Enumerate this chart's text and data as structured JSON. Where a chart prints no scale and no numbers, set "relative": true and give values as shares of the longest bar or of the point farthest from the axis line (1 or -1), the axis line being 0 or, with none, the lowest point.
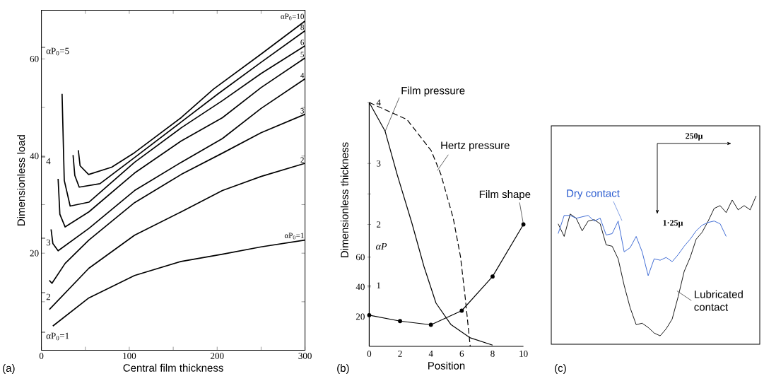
{
  "chart_data": [
    {
      "type": "line",
      "xlabel": "Central film thickness",
      "ylabel": "Dimensionless load",
      "xlim": [
        0,
        300
      ],
      "ylim": [
        0,
        70
      ],
      "xticks": [
        0,
        {
          "value": 50,
          "label": null
        },
        100,
        {
          "value": 150,
          "label": null
        },
        200,
        {
          "value": 250,
          "label": null
        },
        300
      ],
      "yticks": [
        {
          "value": 10,
          "label": null
        },
        20,
        {
          "value": 30,
          "label": null
        },
        40,
        {
          "value": 50,
          "label": null
        },
        60
      ],
      "annotations": [
        "αP$_{0}$=5",
        "4",
        "3",
        "2",
        "αP$_{0}$=1",
        "(a)"
      ],
      "series": [
        {
          "name": "αP$_{0}$=1",
          "color": "#000000",
          "x": [
            13,
            54,
            106,
            159,
            206,
            250,
            300
          ],
          "values": [
            5.0,
            10.8,
            15.4,
            18.3,
            19.8,
            21.3,
            22.7
          ]
        },
        {
          "name": "2",
          "color": "#000000",
          "x": [
            9,
            54,
            106,
            159,
            206,
            250,
            300
          ],
          "values": [
            8.4,
            16.9,
            23.7,
            28.5,
            32.9,
            35.8,
            38.5
          ]
        },
        {
          "name": "3",
          "color": "#000000",
          "x": [
            9,
            12,
            27,
            54,
            106,
            159,
            206,
            250,
            300
          ],
          "values": [
            14.4,
            13.8,
            17.9,
            22.7,
            30.4,
            36.2,
            40.6,
            44.8,
            48.6
          ]
        },
        {
          "name": "4",
          "color": "#000000",
          "x": [
            11,
            13,
            19,
            54,
            106,
            159,
            206,
            250,
            300
          ],
          "values": [
            24.9,
            22,
            20.5,
            25.1,
            32.9,
            38.7,
            43.6,
            49.8,
            55.9
          ]
        },
        {
          "name": "5",
          "color": "#000000",
          "x": [
            19,
            21,
            27,
            54,
            106,
            159,
            206,
            250,
            300
          ],
          "values": [
            35.3,
            28,
            25.4,
            28.5,
            36.5,
            43.1,
            47.9,
            54.1,
            60.2
          ]
        },
        {
          "name": "6",
          "color": "#000000",
          "x": [
            23.5,
            26,
            32.7,
            54,
            106,
            159,
            206,
            250,
            300
          ],
          "values": [
            52.8,
            35,
            29.7,
            30.5,
            38.7,
            45.8,
            51.4,
            57,
            62.7
          ]
        },
        {
          "name": "8",
          "color": "#000000",
          "x": [
            36,
            38,
            43,
            66.6,
            106,
            159,
            201,
            250,
            300
          ],
          "values": [
            40.2,
            36,
            33.6,
            34.3,
            39.7,
            47.0,
            52.8,
            59.3,
            65.8
          ]
        },
        {
          "name": "αP$_{0}$=10",
          "color": "#000000",
          "x": [
            42,
            44,
            53.7,
            80,
            106,
            159,
            196,
            250,
            300
          ],
          "values": [
            41.2,
            38,
            36.2,
            37.7,
            40.7,
            47.9,
            53.8,
            61,
            67.8
          ]
        }
      ]
    },
    {
      "type": "line",
      "xlabel": "Position",
      "ylabel": "Dimensionless thickness",
      "y2label": "αP",
      "xlim": [
        0,
        10
      ],
      "ylim": [
        0,
        164
      ],
      "y2lim": [
        0,
        4
      ],
      "xticks": [
        0,
        2,
        4,
        6,
        8,
        10
      ],
      "yticks": [
        20,
        40,
        60
      ],
      "y2ticks": [
        1,
        2,
        {
          "value": 2.5,
          "label": null
        },
        3,
        4
      ],
      "annotations": [
        "(b)"
      ],
      "series": [
        {
          "name": "Film pressure",
          "color": "#000000",
          "axis": "y2",
          "line_style": "solid",
          "marker": "none",
          "x": [
            0,
            1.03,
            1.81,
            2.77,
            3.55,
            4.33,
            5.29,
            6.55,
            8
          ],
          "values": [
            4,
            3.53,
            2.82,
            2.02,
            1.31,
            0.71,
            0.36,
            0.14,
            0.02
          ]
        },
        {
          "name": "Hertz pressure",
          "color": "#000000",
          "axis": "y2",
          "line_style": "dashed",
          "marker": "none",
          "x": [
            0,
            2.45,
            4.02,
            4.65,
            5.45,
            5.92,
            6.23,
            6.55
          ],
          "values": [
            4,
            3.72,
            3.21,
            2.82,
            2.1,
            1.47,
            0.79,
            0
          ]
        },
        {
          "name": "Film shape",
          "color": "#000000",
          "line_style": "solid",
          "marker": "circle",
          "x": [
            0,
            2,
            4,
            6,
            8,
            10
          ],
          "values": [
            21,
            17,
            14.5,
            24,
            47,
            82
          ]
        }
      ]
    },
    {
      "type": "line",
      "relative": true,
      "categories": [
        null,
        null,
        null,
        null,
        null,
        null,
        null,
        null,
        null,
        null,
        null,
        null,
        null,
        null,
        null,
        null,
        null,
        null,
        null,
        null,
        null,
        null,
        null,
        null,
        null,
        null,
        null,
        null,
        null,
        null,
        null,
        null,
        null,
        null
      ],
      "annotations": [
        "250μ",
        "1·25μ",
        "(c)"
      ],
      "series": [
        {
          "name": "Lubricated contact",
          "color": "#000000",
          "values": [
            0.8,
            0.71,
            0.87,
            0.84,
            0.75,
            0.82,
            0.83,
            0.8,
            0.65,
            0.64,
            0.55,
            0.36,
            0.2,
            0.08,
            0.09,
            0.06,
            0.02,
            0,
            0.05,
            0.12,
            0.28,
            0.46,
            0.56,
            0.69,
            0.74,
            0.82,
            0.91,
            0.93,
            0.88,
            0.97,
            0.9,
            0.93,
            0.9,
            1
          ]
        },
        {
          "name": "Dry contact",
          "color": "#2f5fd0",
          "values": [
            0.73,
            0.86,
            0.86,
            0.84,
            0.85,
            0.86,
            0.82,
            0.84,
            0.72,
            0.73,
            0.82,
            0.6,
            0.63,
            0.71,
            0.6,
            0.43,
            0.55,
            0.54,
            0.56,
            0.53,
            0.58,
            0.64,
            0.69,
            0.75,
            0.79,
            0.81,
            0.82,
            0.8,
            0.71,
            null,
            null,
            null,
            null,
            null
          ]
        }
      ]
    }
  ]
}
